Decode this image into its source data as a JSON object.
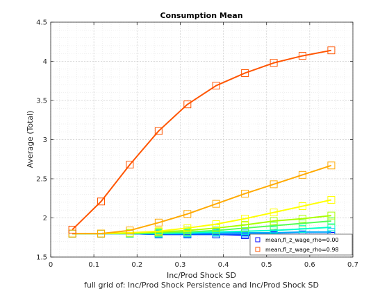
{
  "chart_data": {
    "type": "line",
    "title": "Consumption Mean",
    "xlabel": "Inc/Prod Shock SD",
    "ylabel": "Average (Total)",
    "caption": "full grid of: Inc/Prod Shock Persistence and Inc/Prod Shock SD",
    "xlim": [
      0,
      0.7
    ],
    "ylim": [
      1.5,
      4.5
    ],
    "xticks": [
      0,
      0.1,
      0.2,
      0.3,
      0.4,
      0.5,
      0.6,
      0.7
    ],
    "xtick_labels": [
      "0",
      "0.1",
      "0.2",
      "0.3",
      "0.4",
      "0.5",
      "0.6",
      "0.7"
    ],
    "yticks": [
      1.5,
      2,
      2.5,
      3,
      3.5,
      4,
      4.5
    ],
    "ytick_labels": [
      "1.5",
      "2",
      "2.5",
      "3",
      "3.5",
      "4",
      "4.5"
    ],
    "grid": true,
    "minor_grid": true,
    "legend_position": "bottom-right",
    "x": [
      0.05,
      0.1167,
      0.1833,
      0.25,
      0.3167,
      0.3833,
      0.45,
      0.5167,
      0.5833,
      0.65
    ],
    "series": [
      {
        "name": "mean,fl_z_wage_rho=0.00",
        "color": "#0000ff",
        "marker": "square",
        "legend": true,
        "values": [
          1.8,
          1.8,
          1.8,
          1.79,
          1.79,
          1.79,
          1.78,
          1.78,
          1.78,
          1.77
        ]
      },
      {
        "color": "#0055ff",
        "marker": "square",
        "legend": false,
        "values": [
          1.8,
          1.8,
          1.8,
          1.79,
          1.79,
          1.79,
          1.79,
          1.79,
          1.79,
          1.79
        ]
      },
      {
        "color": "#00aaff",
        "marker": "square",
        "legend": false,
        "values": [
          1.8,
          1.8,
          1.8,
          1.8,
          1.8,
          1.81,
          1.81,
          1.81,
          1.82,
          1.82
        ]
      },
      {
        "color": "#00ffcc",
        "marker": "square",
        "legend": false,
        "values": [
          1.8,
          1.8,
          1.8,
          1.8,
          1.81,
          1.82,
          1.83,
          1.84,
          1.86,
          1.88
        ]
      },
      {
        "color": "#55ff55",
        "marker": "square",
        "legend": false,
        "values": [
          1.8,
          1.8,
          1.8,
          1.81,
          1.82,
          1.84,
          1.87,
          1.9,
          1.93,
          1.96
        ]
      },
      {
        "color": "#aaff00",
        "marker": "square",
        "legend": false,
        "values": [
          1.8,
          1.8,
          1.81,
          1.82,
          1.84,
          1.87,
          1.91,
          1.96,
          1.99,
          2.03
        ]
      },
      {
        "color": "#ffff00",
        "marker": "square",
        "legend": false,
        "values": [
          1.8,
          1.8,
          1.81,
          1.83,
          1.87,
          1.92,
          1.99,
          2.07,
          2.15,
          2.23
        ]
      },
      {
        "color": "#ffaa00",
        "marker": "square",
        "legend": false,
        "values": [
          1.8,
          1.8,
          1.84,
          1.94,
          2.05,
          2.18,
          2.31,
          2.43,
          2.55,
          2.67
        ]
      },
      {
        "name": "mean,fl_z_wage_rho=0.98",
        "color": "#ff5500",
        "marker": "square",
        "legend": true,
        "values": [
          1.85,
          2.21,
          2.68,
          3.11,
          3.45,
          3.69,
          3.85,
          3.98,
          4.07,
          4.14
        ]
      }
    ]
  }
}
